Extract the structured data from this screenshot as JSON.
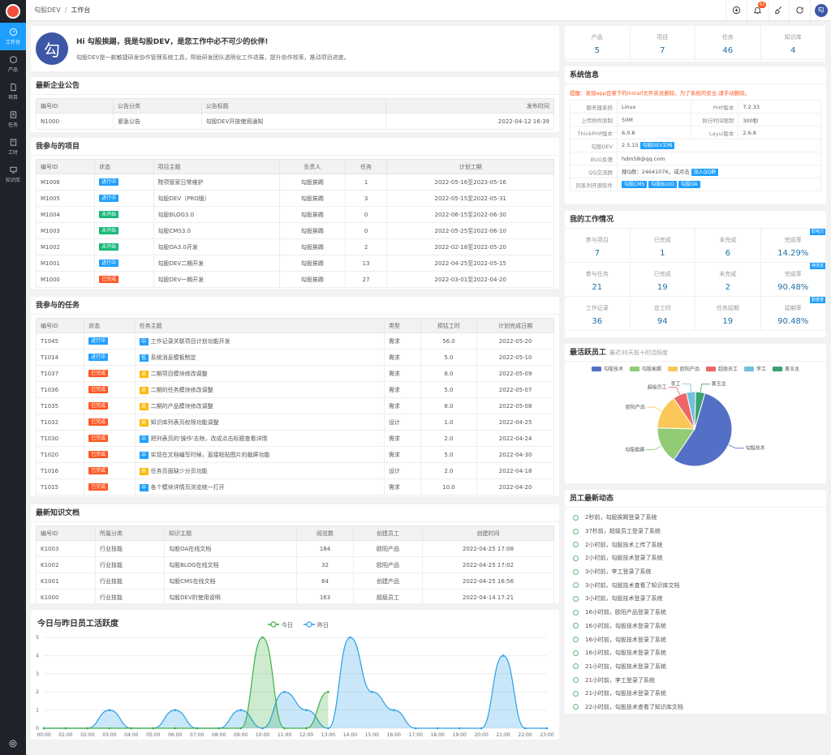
{
  "app": {
    "title": "勾股DEV",
    "crumb_current": "工作台",
    "avatar_char": "勾",
    "notify_count": "62"
  },
  "sidebar": [
    {
      "label": "工作台",
      "icon": "dashboard-icon",
      "active": true
    },
    {
      "label": "产品",
      "icon": "cube-icon"
    },
    {
      "label": "项目",
      "icon": "file-icon"
    },
    {
      "label": "任务",
      "icon": "task-icon"
    },
    {
      "label": "工时",
      "icon": "clock-icon"
    },
    {
      "label": "知识库",
      "icon": "book-icon"
    }
  ],
  "welcome": {
    "avatar": "勾",
    "title": "Hi 勾股挨踢，我是勾股DEV，是您工作中必不可少的伙伴!",
    "desc": "勾股DEV是一款敏捷研发协作管理系统工具，帮助研发团队透明化工作进展，提升协作效率，推动项目进度。"
  },
  "top_stats": [
    {
      "k": "产品",
      "v": "5"
    },
    {
      "k": "项目",
      "v": "7"
    },
    {
      "k": "任务",
      "v": "46"
    },
    {
      "k": "知识库",
      "v": "4"
    }
  ],
  "notice": {
    "title": "最新企业公告",
    "headers": [
      "编号ID",
      "公告分类",
      "公告标题",
      "发布时间"
    ],
    "rows": [
      [
        "N1000",
        "紧急公告",
        "勾股DEV开放使用通知",
        "2022-04-12 16:39"
      ]
    ]
  },
  "projects": {
    "title": "我参与的项目",
    "headers": [
      "编号ID",
      "状态",
      "项目主题",
      "负责人",
      "任务",
      "计划工期"
    ],
    "rows": [
      [
        "M1006",
        "进行中",
        "blue",
        "院项管家日常维护",
        "勾股挨踢",
        "1",
        "2022-05-16至2023-05-16"
      ],
      [
        "M1005",
        "进行中",
        "blue",
        "勾股DEV（PRO版）",
        "勾股挨踢",
        "3",
        "2022-05-15至2022-05-31"
      ],
      [
        "M1004",
        "未开始",
        "green",
        "勾股BLOG3.0",
        "勾股挨踢",
        "0",
        "2022-06-15至2022-06-30"
      ],
      [
        "M1003",
        "未开始",
        "green",
        "勾股CMS3.0",
        "勾股挨踢",
        "0",
        "2022-05-25至2022-06-10"
      ],
      [
        "M1002",
        "未开始",
        "green",
        "勾股OA3.0开发",
        "勾股挨踢",
        "2",
        "2022-02-18至2022-05-20"
      ],
      [
        "M1001",
        "进行中",
        "blue",
        "勾股DEV二期开发",
        "勾股挨踢",
        "13",
        "2022-04-25至2022-05-15"
      ],
      [
        "M1000",
        "已完成",
        "red",
        "勾股DEV一期开发",
        "勾股挨踢",
        "27",
        "2022-03-01至2022-04-20"
      ]
    ]
  },
  "tasks": {
    "title": "我参与的任务",
    "headers": [
      "编号ID",
      "状态",
      "任务主题",
      "类型",
      "预估工时",
      "计划完成日期"
    ],
    "rows": [
      [
        "T1045",
        "进行中",
        "blue",
        "中",
        "blue",
        "工作记录关联项目计划功能开发",
        "需求",
        "56.0",
        "2022-05-20"
      ],
      [
        "T1014",
        "进行中",
        "blue",
        "低",
        "blue",
        "系统消息模板制定",
        "需求",
        "5.0",
        "2022-05-10"
      ],
      [
        "T1037",
        "已完成",
        "red",
        "高",
        "orange",
        "二期项目模块修改调整",
        "需求",
        "8.0",
        "2022-05-09"
      ],
      [
        "T1036",
        "已完成",
        "red",
        "高",
        "orange",
        "二期的任务模块修改调整",
        "需求",
        "5.0",
        "2022-05-07"
      ],
      [
        "T1035",
        "已完成",
        "red",
        "高",
        "orange",
        "二期的产品模块修改调整",
        "需求",
        "8.0",
        "2022-05-08"
      ],
      [
        "T1032",
        "已完成",
        "red",
        "高",
        "orange",
        "知识库列表页权限功能调整",
        "设计",
        "1.0",
        "2022-04-25"
      ],
      [
        "T1030",
        "已完成",
        "red",
        "中",
        "blue",
        "把列表页的'操作'去除，改成点击标题查看详情",
        "需求",
        "2.0",
        "2022-04-24"
      ],
      [
        "T1020",
        "已完成",
        "red",
        "中",
        "blue",
        "实现在文档编写时候，直接粘贴图片的截屏功能",
        "需求",
        "5.0",
        "2022-04-30"
      ],
      [
        "T1016",
        "已完成",
        "red",
        "高",
        "orange",
        "任务页面缺少分页功能",
        "设计",
        "2.0",
        "2022-04-18"
      ],
      [
        "T1015",
        "已完成",
        "red",
        "中",
        "blue",
        "各个模块详情页浏览统一打开",
        "需求",
        "10.0",
        "2022-04-20"
      ]
    ]
  },
  "docs": {
    "title": "最新知识文档",
    "headers": [
      "编号ID",
      "所属分类",
      "知识主题",
      "阅览数",
      "创建员工",
      "创建时间"
    ],
    "rows": [
      [
        "K1003",
        "行业技能",
        "勾股OA在线文档",
        "184",
        "欧阳产品",
        "2022-04-25 17:08"
      ],
      [
        "K1002",
        "行业技能",
        "勾股BLOG在线文档",
        "32",
        "欧阳产品",
        "2022-04-25 17:02"
      ],
      [
        "K1001",
        "行业技能",
        "勾股CMS在线文档",
        "64",
        "创建产品",
        "2022-04-25 16:56"
      ],
      [
        "K1000",
        "行业技能",
        "勾股DEV的使用说明",
        "163",
        "超级员工",
        "2022-04-14 17:21"
      ]
    ]
  },
  "sysinfo": {
    "title": "系统信息",
    "warning": "提醒：发现app目录下的install文件夹没删除，为了系统的安全,请手动删除。",
    "rows": [
      [
        "服务器系统",
        "Linux",
        "PHP版本",
        "7.2.33"
      ],
      [
        "上传附件限制",
        "50M",
        "执行时间限制",
        "300秒"
      ],
      [
        "ThinkPHP版本",
        "6.0.8",
        "Layui版本",
        "2.6.8"
      ]
    ],
    "dev_label": "勾股DEV",
    "dev_ver": "2.5.15",
    "dev_doc": "勾股DEV文档",
    "bug_label": "BUG反馈",
    "bug_val": "hdm58@qq.com",
    "qq_label": "QQ交流群",
    "qq_val": "搜Q群：24641076，或点击",
    "qq_btn": "加入QQ群",
    "open_label": "同系列开源软件",
    "open_btns": [
      "勾股CMS",
      "勾股BLOG",
      "勾股OA"
    ]
  },
  "work": {
    "title": "我的工作情况",
    "rows": [
      {
        "tag": "影响力",
        "cells": [
          [
            "参与项目",
            "7"
          ],
          [
            "已完成",
            "1"
          ],
          [
            "未完成",
            "6"
          ],
          [
            "完成率",
            "14.29%"
          ]
        ]
      },
      {
        "tag": "待改进",
        "cells": [
          [
            "参与任务",
            "21"
          ],
          [
            "已完成",
            "19"
          ],
          [
            "未完成",
            "2"
          ],
          [
            "完成率",
            "90.48%"
          ]
        ]
      },
      {
        "tag": "勤奋度",
        "cells": [
          [
            "工作记录",
            "36"
          ],
          [
            "总工时",
            "94"
          ],
          [
            "任务延期",
            "19"
          ],
          [
            "延期率",
            "90.48%"
          ]
        ]
      }
    ]
  },
  "active": {
    "title": "最活跃员工",
    "subtitle": "最近30天前十的活跃度"
  },
  "feed": {
    "title": "员工最新动态",
    "items": [
      "2秒前，勾股挨踢登录了系统",
      "37秒前，超级员工登录了系统",
      "2小时前，勾股技术上传了系统",
      "2小时前，勾股技术登录了系统",
      "3小时前，李工登录了系统",
      "3小时前，勾股技术查看了知识库文档",
      "3小时前，勾股技术登录了系统",
      "16小时前，欧阳产品登录了系统",
      "16小时前，勾股技术登录了系统",
      "16小时前，勾股技术登录了系统",
      "16小时前，勾股技术登录了系统",
      "21小时前，勾股技术登录了系统",
      "21小时前，李工登录了系统",
      "21小时前，勾股技术登录了系统",
      "22小时前，勾股技术查看了知识库文档"
    ]
  },
  "chart_data": [
    {
      "type": "pie",
      "title": "最活跃员工",
      "subtitle": "最近30天前十的活跃度",
      "series": [
        {
          "name": "勾股技术",
          "value": 55,
          "color": "#5470c6"
        },
        {
          "name": "勾股挨踢",
          "value": 16,
          "color": "#91cc75"
        },
        {
          "name": "欧阳产品",
          "value": 15,
          "color": "#fac858"
        },
        {
          "name": "超级员工",
          "value": 6,
          "color": "#ee6666"
        },
        {
          "name": "李工",
          "value": 4,
          "color": "#73c0de"
        },
        {
          "name": "黄玉龙",
          "value": 4,
          "color": "#3ba272"
        }
      ]
    },
    {
      "type": "area",
      "title": "今日与昨日员工活跃度",
      "categories": [
        "00:00",
        "01:00",
        "02:00",
        "03:00",
        "04:00",
        "05:00",
        "06:00",
        "07:00",
        "08:00",
        "09:00",
        "10:00",
        "11:00",
        "12:00",
        "13:00",
        "14:00",
        "15:00",
        "16:00",
        "17:00",
        "18:00",
        "19:00",
        "20:00",
        "21:00",
        "22:00",
        "23:00"
      ],
      "ylim": [
        0,
        5
      ],
      "series": [
        {
          "name": "今日",
          "color": "#3cb043",
          "values": [
            0,
            0,
            0,
            0,
            0,
            0,
            0,
            0,
            0,
            0,
            5,
            0,
            0,
            2,
            null,
            null,
            null,
            null,
            null,
            null,
            null,
            null,
            null,
            null
          ]
        },
        {
          "name": "昨日",
          "color": "#2c9ee8",
          "values": [
            0,
            0,
            0,
            1,
            0,
            0,
            1,
            0,
            0,
            1,
            0,
            2,
            1,
            0,
            5,
            2,
            1,
            0,
            0,
            0,
            0,
            4,
            0,
            0
          ]
        }
      ]
    }
  ]
}
